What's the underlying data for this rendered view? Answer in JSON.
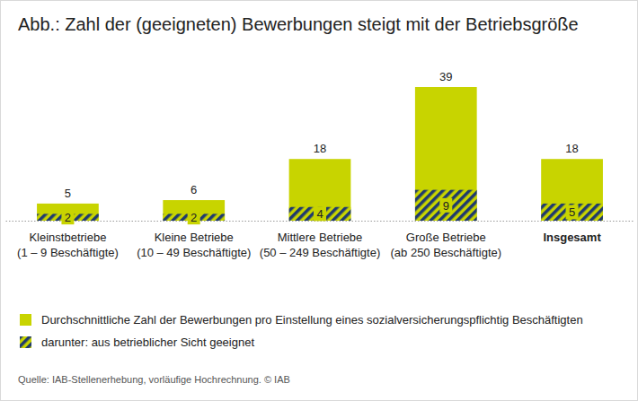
{
  "chart_data": {
    "type": "bar",
    "title": "Abb.: Zahl der (geeigneten) Bewerbungen steigt mit der Betriebsgröße",
    "categories": [
      "Kleinstbetriebe\n(1 – 9 Beschäftigte)",
      "Kleine Betriebe\n(10 – 49 Beschäftigte)",
      "Mittlere Betriebe\n(50 – 249 Beschäftigte)",
      "Große Betriebe\n(ab 250 Beschäftigte)",
      "Insgesamt"
    ],
    "series": [
      {
        "name": "Durchschnittliche Zahl der Bewerbungen pro Einstellung eines sozialversicherungspflichtig Beschäftigten",
        "color": "#c8d400",
        "values": [
          5,
          6,
          18,
          39,
          18
        ]
      },
      {
        "name": "darunter: aus betrieblicher Sicht geeignet",
        "color": "#1f3a6e",
        "values": [
          2,
          2,
          4,
          9,
          5
        ]
      }
    ],
    "ylim": [
      0,
      39
    ],
    "stacked": false,
    "data_labels": true,
    "tick_labels": "x",
    "legend": "bottom-left",
    "source": "Quelle: IAB-Stellenerhebung, vorläufige Hochrechnung. © IAB"
  }
}
